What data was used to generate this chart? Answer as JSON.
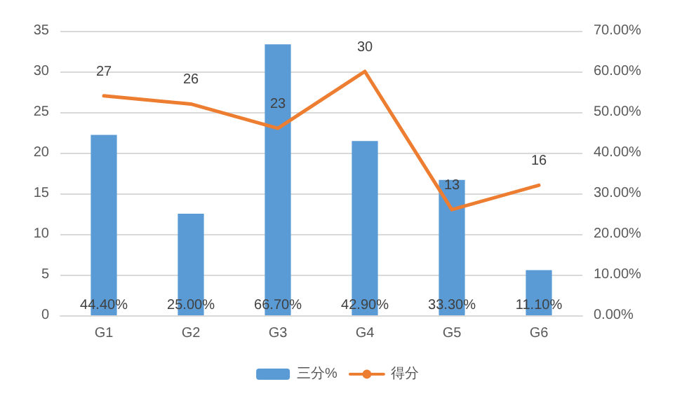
{
  "chart_data": {
    "type": "bar",
    "categories": [
      "G1",
      "G2",
      "G3",
      "G4",
      "G5",
      "G6"
    ],
    "series": [
      {
        "name": "三分%",
        "axis": "y2",
        "color": "#5b9bd5",
        "values": [
          44.4,
          25,
          66.7,
          42.9,
          33.3,
          11.1
        ],
        "value_labels": [
          "44.40%",
          "25.00%",
          "66.70%",
          "42.90%",
          "33.30%",
          "11.10%"
        ]
      },
      {
        "name": "得分",
        "type": "line",
        "color": "#ed7d31",
        "values": [
          27,
          26,
          23,
          30,
          13,
          16
        ],
        "value_labels": [
          "27",
          "26",
          "23",
          "30",
          "13",
          "16"
        ],
        "marker": "none"
      }
    ],
    "ylim": [
      0,
      35
    ],
    "yticks": [
      0,
      5,
      10,
      15,
      20,
      25,
      30,
      35
    ],
    "y2lim": [
      0,
      70
    ],
    "y2ticks": [
      {
        "value": 0,
        "label": "0.00%"
      },
      {
        "value": 10,
        "label": "10.00%"
      },
      {
        "value": 20,
        "label": "20.00%"
      },
      {
        "value": 30,
        "label": "30.00%"
      },
      {
        "value": 40,
        "label": "40.00%"
      },
      {
        "value": 50,
        "label": "50.00%"
      },
      {
        "value": 60,
        "label": "60.00%"
      },
      {
        "value": 70,
        "label": "70.00%"
      }
    ],
    "grid": "y",
    "legend": "bottom"
  }
}
